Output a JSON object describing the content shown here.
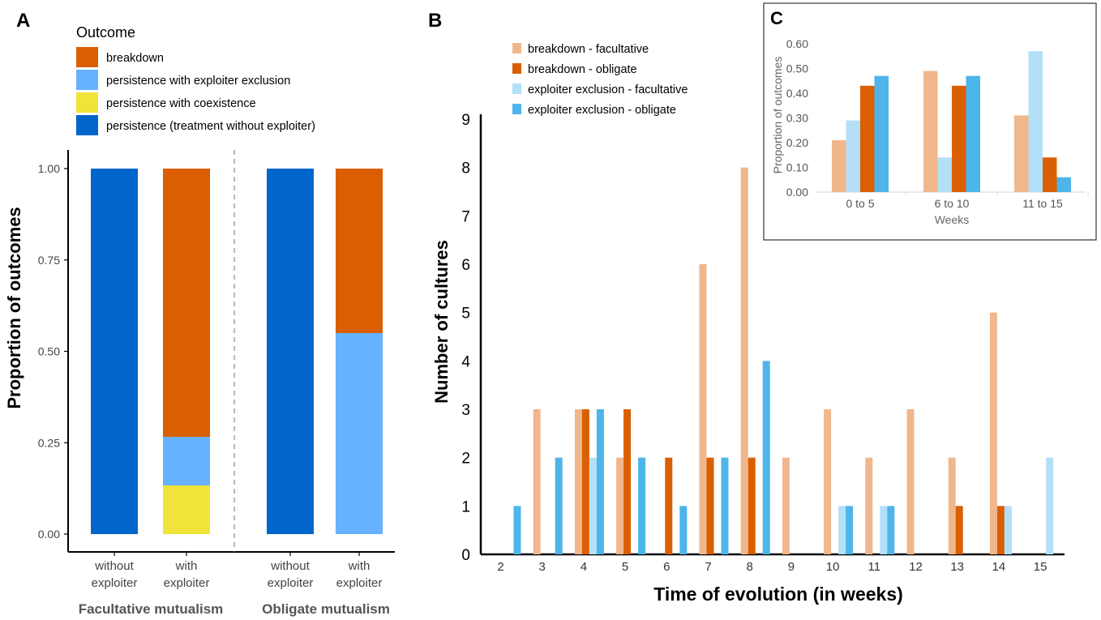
{
  "panel_labels": {
    "a": "A",
    "b": "B",
    "c": "C"
  },
  "colors": {
    "breakdown": "#d95f02",
    "exclusion": "#66b2ff",
    "coexistence": "#f2e33a",
    "persistence": "#0066cc",
    "fac_breakdown": "#f0b78d",
    "obl_breakdown": "#d95f02",
    "fac_exclusion": "#b3e0f7",
    "obl_exclusion": "#4db5ea"
  },
  "chart_data": [
    {
      "id": "A",
      "type": "bar",
      "stacked": true,
      "legend_title": "Outcome",
      "legend": [
        {
          "label": "breakdown",
          "color": "#d95f02"
        },
        {
          "label": "persistence with exploiter exclusion",
          "color": "#66b2ff"
        },
        {
          "label": "persistence with coexistence",
          "color": "#f2e33a"
        },
        {
          "label": "persistence (treatment without exploiter)",
          "color": "#0066cc"
        }
      ],
      "ylabel": "Proportion of outcomes",
      "ylim": [
        0,
        1
      ],
      "yticks": [
        "0.00",
        "0.25",
        "0.50",
        "0.75",
        "1.00"
      ],
      "bars": [
        {
          "label_line1": "without",
          "label_line2": "exploiter",
          "segments": [
            {
              "name": "persistence (treatment without exploiter)",
              "value": 1.0,
              "color": "#0066cc"
            }
          ]
        },
        {
          "label_line1": "with",
          "label_line2": "exploiter",
          "segments": [
            {
              "name": "persistence with coexistence",
              "value": 0.133,
              "color": "#f2e33a"
            },
            {
              "name": "persistence with exploiter exclusion",
              "value": 0.133,
              "color": "#66b2ff"
            },
            {
              "name": "breakdown",
              "value": 0.734,
              "color": "#d95f02"
            }
          ]
        },
        {
          "label_line1": "without",
          "label_line2": "exploiter",
          "segments": [
            {
              "name": "persistence (treatment without exploiter)",
              "value": 1.0,
              "color": "#0066cc"
            }
          ]
        },
        {
          "label_line1": "with",
          "label_line2": "exploiter",
          "segments": [
            {
              "name": "persistence with exploiter exclusion",
              "value": 0.55,
              "color": "#66b2ff"
            },
            {
              "name": "breakdown",
              "value": 0.45,
              "color": "#d95f02"
            }
          ]
        }
      ],
      "groups": [
        "Facultative mutualism",
        "Obligate mutualism"
      ]
    },
    {
      "id": "B",
      "type": "bar",
      "xlabel": "Time of evolution (in weeks)",
      "ylabel": "Number of cultures",
      "ylim": [
        0,
        9
      ],
      "yticks": [
        "0",
        "1",
        "2",
        "3",
        "4",
        "5",
        "6",
        "7",
        "8",
        "9"
      ],
      "categories": [
        "2",
        "3",
        "4",
        "5",
        "6",
        "7",
        "8",
        "9",
        "10",
        "11",
        "12",
        "13",
        "14",
        "15"
      ],
      "series": [
        {
          "name": "breakdown - facultative",
          "color": "#f0b78d",
          "values": [
            0,
            3,
            3,
            2,
            0,
            6,
            8,
            2,
            3,
            2,
            3,
            2,
            5,
            0
          ]
        },
        {
          "name": "breakdown - obligate",
          "color": "#d95f02",
          "values": [
            0,
            0,
            3,
            3,
            2,
            2,
            2,
            0,
            0,
            0,
            0,
            1,
            1,
            0
          ]
        },
        {
          "name": "exploiter exclusion - facultative",
          "color": "#b3e0f7",
          "values": [
            0,
            0,
            2,
            0,
            0,
            0,
            0,
            0,
            1,
            1,
            0,
            0,
            1,
            2
          ]
        },
        {
          "name": "exploiter exclusion - obligate",
          "color": "#4db5ea",
          "values": [
            1,
            2,
            3,
            2,
            1,
            2,
            4,
            0,
            1,
            1,
            0,
            0,
            0,
            0
          ]
        }
      ]
    },
    {
      "id": "C",
      "type": "bar",
      "xlabel": "Weeks",
      "ylabel": "Proportion of outcomes",
      "ylim": [
        0,
        0.6
      ],
      "yticks": [
        "0.00",
        "0.10",
        "0.20",
        "0.30",
        "0.40",
        "0.50",
        "0.60"
      ],
      "categories": [
        "0 to 5",
        "6 to 10",
        "11 to 15"
      ],
      "series": [
        {
          "name": "breakdown - facultative",
          "color": "#f0b78d",
          "values": [
            0.21,
            0.49,
            0.31
          ]
        },
        {
          "name": "exploiter exclusion - facultative",
          "color": "#b3e0f7",
          "values": [
            0.29,
            0.14,
            0.57
          ]
        },
        {
          "name": "breakdown - obligate",
          "color": "#d95f02",
          "values": [
            0.43,
            0.43,
            0.14
          ]
        },
        {
          "name": "exploiter exclusion - obligate",
          "color": "#4db5ea",
          "values": [
            0.47,
            0.47,
            0.06
          ]
        }
      ]
    }
  ]
}
